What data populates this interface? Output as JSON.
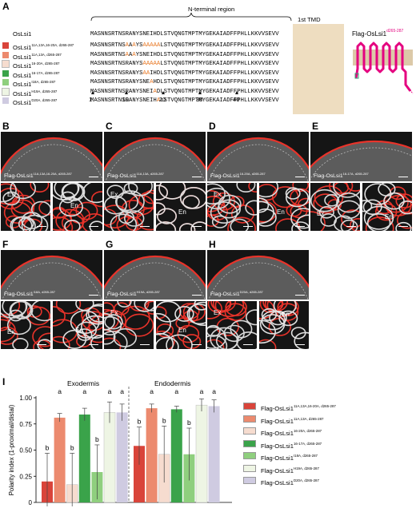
{
  "panel_letters": {
    "a": "A",
    "b": "B",
    "c": "C",
    "d": "D",
    "e": "E",
    "f": "F",
    "g": "G",
    "h": "H",
    "i": "I"
  },
  "header": {
    "nterm": "N-terminal region",
    "tmd": "1st TMD",
    "protein_label": "Flag-OsLsi1",
    "protein_sup": "d265-287",
    "ref": "OsLsi1"
  },
  "sequences": [
    {
      "name": "OsLsi1",
      "sup": "11A,13A,16-20A, d265-287",
      "color": "#d9443a",
      "segs": [
        [
          "MASNNSRTNS",
          0
        ],
        [
          "A",
          1
        ],
        [
          "A",
          0
        ],
        [
          "A",
          1
        ],
        [
          "YS",
          0
        ],
        [
          "AAAAA",
          1
        ],
        [
          "LSTVQNGTMPTMYGEKA",
          0
        ]
      ]
    },
    {
      "name": "OsLsi1",
      "sup": "11A,13A, d265-287",
      "color": "#ec8a6e",
      "segs": [
        [
          "MASNNSRTNS",
          0
        ],
        [
          "A",
          1
        ],
        [
          "A",
          0
        ],
        [
          "A",
          1
        ],
        [
          "YSNEIHDLSTVQNGTMPTMYGEKA",
          0
        ]
      ]
    },
    {
      "name": "OsLsi1",
      "sup": "16-20A, d265-287",
      "color": "#f6dccf",
      "segs": [
        [
          "MASNNSRTNSRANYS",
          0
        ],
        [
          "AAAAA",
          1
        ],
        [
          "LSTVQNGTMPTMYGEKA",
          0
        ]
      ]
    },
    {
      "name": "OsLsi1",
      "sup": "16-17A, d265-287",
      "color": "#3aa34a",
      "segs": [
        [
          "MASNNSRTNSRANYS",
          0
        ],
        [
          "AA",
          1
        ],
        [
          "IHDLSTVQNGTMPTMYGEKA",
          0
        ]
      ]
    },
    {
      "name": "OsLsi1",
      "sup": "I18A, d265-287",
      "color": "#8fcf7e",
      "segs": [
        [
          "MASNNSRTNSRANYSNE",
          0
        ],
        [
          "A",
          1
        ],
        [
          "HDLSTVQNGTMPTMYGEKA",
          0
        ]
      ]
    },
    {
      "name": "OsLsi1",
      "sup": "H19A, d265-287",
      "color": "#eef5e4",
      "segs": [
        [
          "MASNNSRTNSRANYSNEI",
          0
        ],
        [
          "A",
          1
        ],
        [
          "DLSTVQNGTMPTMYGEKA",
          0
        ]
      ]
    },
    {
      "name": "OsLsi1",
      "sup": "D20A, d265-287",
      "color": "#cfcbe1",
      "segs": [
        [
          "MASNNSRTNSRANYSNEIH",
          0
        ],
        [
          "A",
          1
        ],
        [
          "LSTVQNGTMPTMYGEKA",
          0
        ]
      ]
    }
  ],
  "ref_seq": "MASNNSRTNSRANYSNEIHDLSTVQNGTMPTMYGEKAIADFFPHLLKKVVSEVV",
  "tail": "IADFF",
  "tmd_seq": "PHLLKKVVSEVV",
  "positions": [
    "1",
    "10",
    "20",
    "30",
    "40"
  ],
  "micro_panels": [
    {
      "id": "b",
      "label": "Flag-OsLsi1",
      "sup": "11A,13A,16-20A, d265-287",
      "ex": "Ex",
      "en": "En"
    },
    {
      "id": "c",
      "label": "Flag-OsLsi1",
      "sup": "11A,13A, d265-287",
      "ex": "Ex",
      "en": "En"
    },
    {
      "id": "d",
      "label": "Flag-OsLsi1",
      "sup": "16-20A, d265-287",
      "ex": "Ex",
      "en": "En"
    },
    {
      "id": "e",
      "label": "Flag-OsLsi1",
      "sup": "16-17A, d265-287",
      "ex": "Ex",
      "en": "En"
    },
    {
      "id": "f",
      "label": "Flag-OsLsi1",
      "sup": "I18A, d265-287",
      "ex": "Ex",
      "en": "En"
    },
    {
      "id": "g",
      "label": "Flag-OsLsi1",
      "sup": "H19A, d265-287",
      "ex": "Ex",
      "en": "En"
    },
    {
      "id": "h",
      "label": "Flag-OsLsi1",
      "sup": "D20A, d265-287",
      "ex": "Ex",
      "en": "En"
    }
  ],
  "chart_data": {
    "type": "bar",
    "groups": [
      "Exodermis",
      "Endodermis"
    ],
    "ylabel": "Polarity index (1-proximal/distal)",
    "ylim": [
      0,
      1.0
    ],
    "yticks": [
      "0",
      "0.25",
      "0.50",
      "0.75",
      "1.00"
    ],
    "series": [
      {
        "name": "Flag-OsLsi1",
        "sup": "11A,13A,16-20A, d265-287",
        "color": "#d9443a",
        "values": [
          0.2,
          0.54
        ],
        "err": [
          0.27,
          0.18
        ],
        "letters": [
          "b",
          "b"
        ]
      },
      {
        "name": "Flag-OsLsi1",
        "sup": "11A,13A, d265-287",
        "color": "#ec8a6e",
        "values": [
          0.81,
          0.9
        ],
        "err": [
          0.04,
          0.04
        ],
        "letters": [
          "a",
          "a"
        ]
      },
      {
        "name": "Flag-OsLsi1",
        "sup": "16-20A, d265-287",
        "color": "#f6dccf",
        "values": [
          0.17,
          0.46
        ],
        "err": [
          0.3,
          0.27
        ],
        "letters": [
          "b",
          "b"
        ]
      },
      {
        "name": "Flag-OsLsi1",
        "sup": "16-17A, d265-287",
        "color": "#3aa34a",
        "values": [
          0.84,
          0.89
        ],
        "err": [
          0.06,
          0.03
        ],
        "letters": [
          "a",
          "a"
        ]
      },
      {
        "name": "Flag-OsLsi1",
        "sup": "I18A, d265-287",
        "color": "#8fcf7e",
        "values": [
          0.29,
          0.46
        ],
        "err": [
          0.26,
          0.25
        ],
        "letters": [
          "b",
          "b"
        ]
      },
      {
        "name": "Flag-OsLsi1",
        "sup": "H19A, d265-287",
        "color": "#eef5e4",
        "values": [
          0.86,
          0.93
        ],
        "err": [
          0.1,
          0.06
        ],
        "letters": [
          "a",
          "a"
        ]
      },
      {
        "name": "Flag-OsLsi1",
        "sup": "D20A, d265-287",
        "color": "#cfcbe1",
        "values": [
          0.86,
          0.92
        ],
        "err": [
          0.08,
          0.06
        ],
        "letters": [
          "a",
          "a"
        ]
      }
    ]
  }
}
